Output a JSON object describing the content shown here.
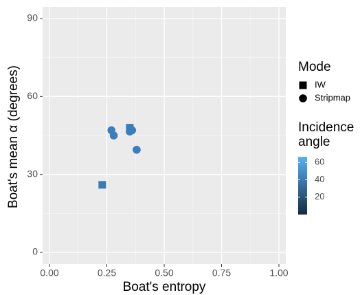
{
  "chart_data": {
    "type": "scatter",
    "xlabel": "Boat's entropy",
    "ylabel": "Boat's mean α (degrees)",
    "xlim": [
      -0.03,
      1.03
    ],
    "ylim": [
      -4.5,
      94.5
    ],
    "xticks": [
      {
        "value": 0,
        "label": "0.00"
      },
      {
        "value": 0.25,
        "label": "0.25"
      },
      {
        "value": 0.5,
        "label": "0.50"
      },
      {
        "value": 0.75,
        "label": "0.75"
      },
      {
        "value": 1,
        "label": "1.00"
      }
    ],
    "yticks": [
      0,
      30,
      60,
      90
    ],
    "grid": true,
    "legend_title": "Mode",
    "series": [
      {
        "name": "IW",
        "shape": "square",
        "color": "#3a7cb9",
        "x": [
          0.23,
          0.35
        ],
        "values": [
          26,
          48
        ]
      },
      {
        "name": "Stripmap",
        "shape": "circle",
        "color": "#3b7ebc",
        "x": [
          0.27,
          0.28,
          0.35,
          0.36,
          0.38
        ],
        "values": [
          47,
          45,
          46.5,
          47,
          39.5
        ]
      }
    ],
    "colorbar": {
      "title_lines": [
        "Incidence",
        "angle"
      ],
      "lim": [
        0,
        66.5
      ],
      "ticks": [
        20,
        40,
        60
      ],
      "low_color": "#132b43",
      "high_color": "#56b1f7"
    }
  }
}
